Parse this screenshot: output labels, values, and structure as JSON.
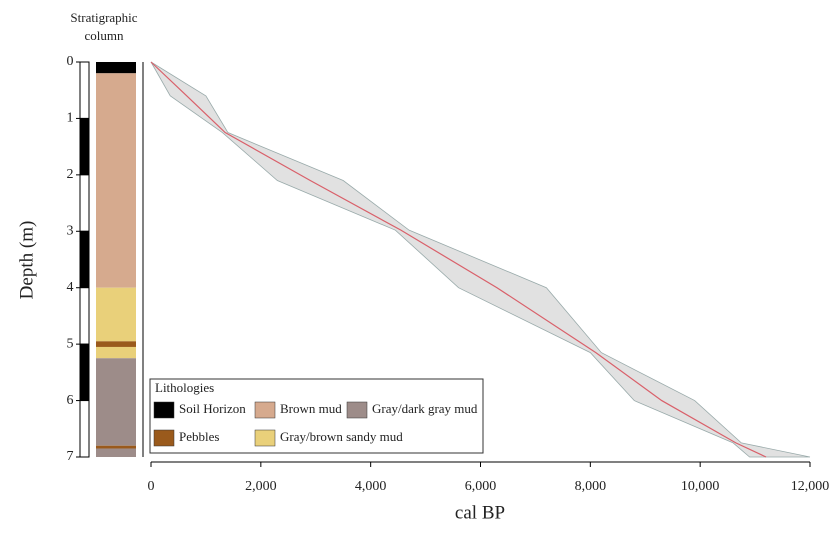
{
  "chart_data": {
    "type": "age-depth",
    "column_title": "Stratigraphic column",
    "x_label": "cal BP",
    "y_label": "Depth (m)",
    "xlim": [
      0,
      12000
    ],
    "xticks": [
      0,
      {
        "value": 2000,
        "label": "2,000"
      },
      {
        "value": 4000,
        "label": "4,000"
      },
      {
        "value": 6000,
        "label": "6,000"
      },
      {
        "value": 8000,
        "label": "8,000"
      },
      {
        "value": 10000,
        "label": "10,000"
      },
      {
        "value": 12000,
        "label": "12,000"
      }
    ],
    "ylim": [
      0,
      7
    ],
    "y_inverted": true,
    "yticks": [
      0,
      1,
      2,
      3,
      4,
      5,
      6,
      7
    ],
    "series": [
      {
        "color": "#d9606a",
        "envelope_color": "#c8c8c8",
        "depth": [
          0,
          0.6,
          1.25,
          2.1,
          2.98,
          4.0,
          5.15,
          6.0,
          6.75,
          7.0
        ],
        "age": [
          0,
          650,
          1350,
          2900,
          4550,
          6300,
          8100,
          9300,
          10650,
          11200
        ],
        "age_min": [
          0,
          350,
          1300,
          2300,
          4450,
          5600,
          8000,
          8800,
          10600,
          10900
        ],
        "age_max": [
          0,
          1000,
          1400,
          3500,
          4700,
          7200,
          8200,
          9900,
          10750,
          12000
        ]
      }
    ],
    "legend_title": "Lithologies",
    "lithologies": [
      {
        "name": "Soil Horizon",
        "color": "#000000"
      },
      {
        "name": "Brown mud",
        "color": "#d6aa8e"
      },
      {
        "name": "Gray/dark gray mud",
        "color": "#9d8c89"
      },
      {
        "name": "Pebbles",
        "color": "#9a5a1c"
      },
      {
        "name": "Gray/brown sandy mud",
        "color": "#e9d07a"
      }
    ],
    "layers": [
      {
        "top": 0,
        "bottom": 0.2,
        "lithology": 0
      },
      {
        "top": 0.2,
        "bottom": 4.0,
        "lithology": 1
      },
      {
        "top": 4.0,
        "bottom": 4.95,
        "lithology": 4
      },
      {
        "top": 4.95,
        "bottom": 5.05,
        "lithology": 3
      },
      {
        "top": 5.05,
        "bottom": 5.25,
        "lithology": 4
      },
      {
        "top": 5.25,
        "bottom": 6.8,
        "lithology": 2
      },
      {
        "top": 6.8,
        "bottom": 6.85,
        "lithology": 3
      },
      {
        "top": 6.85,
        "bottom": 7.0,
        "lithology": 2
      }
    ]
  }
}
